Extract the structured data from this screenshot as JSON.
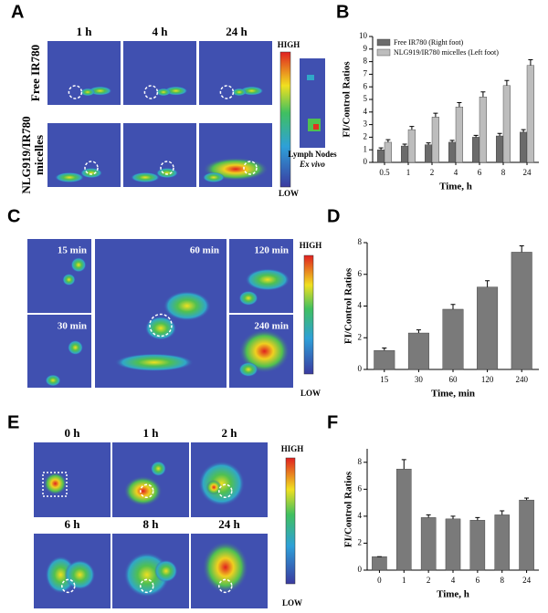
{
  "figure": {
    "panel_labels": [
      "A",
      "B",
      "C",
      "D",
      "E",
      "F"
    ],
    "panel_a": {
      "columns": [
        "1 h",
        "4 h",
        "24 h"
      ],
      "row_labels": [
        "Free IR780",
        "NLG919/IR780",
        "micelles"
      ],
      "scale_high": "HIGH",
      "scale_low": "LOW",
      "inset_label": "Lymph Nodes",
      "inset_sublabel": "Ex vivo"
    },
    "panel_c": {
      "times": [
        "15 min",
        "30 min",
        "60 min",
        "120 min",
        "240 min"
      ],
      "scale_high": "HIGH",
      "scale_low": "LOW"
    },
    "panel_e": {
      "times": [
        "0 h",
        "1 h",
        "2 h",
        "6 h",
        "8 h",
        "24 h"
      ],
      "scale_high": "HIGH",
      "scale_low": "LOW"
    }
  },
  "chart_data": [
    {
      "type": "bar",
      "categories": [
        "0.5",
        "1",
        "2",
        "4",
        "6",
        "8",
        "24"
      ],
      "series": [
        {
          "name": "Free IR780 (Right foot)",
          "color": "#6b6b6b",
          "values": [
            1.0,
            1.3,
            1.4,
            1.6,
            2.0,
            2.1,
            2.4
          ],
          "errors": [
            0.15,
            0.15,
            0.15,
            0.15,
            0.15,
            0.2,
            0.2
          ]
        },
        {
          "name": "NLG919/IR780 micelles (Left foot)",
          "color": "#bdbdbd",
          "values": [
            1.6,
            2.6,
            3.6,
            4.4,
            5.2,
            6.1,
            7.7
          ],
          "errors": [
            0.2,
            0.25,
            0.3,
            0.35,
            0.4,
            0.4,
            0.45
          ]
        }
      ],
      "ylim": [
        0,
        10
      ],
      "yticks": [
        0,
        1,
        2,
        3,
        4,
        5,
        6,
        7,
        8,
        9,
        10
      ],
      "y_label": "FI/Control Ratios",
      "x_label": "Time, h",
      "legend": "upper left"
    },
    {
      "type": "bar",
      "categories": [
        "15",
        "30",
        "60",
        "120",
        "240"
      ],
      "color": "#7a7a7a",
      "values": [
        1.2,
        2.3,
        3.8,
        5.2,
        7.4
      ],
      "errors": [
        0.15,
        0.2,
        0.3,
        0.4,
        0.4
      ],
      "ylim": [
        0,
        8
      ],
      "yticks": [
        0,
        2,
        4,
        6,
        8
      ],
      "y_label": "FI/Control Ratios",
      "x_label": "Time, min"
    },
    {
      "type": "bar",
      "categories": [
        "0",
        "1",
        "2",
        "4",
        "6",
        "8",
        "24"
      ],
      "color": "#7a7a7a",
      "values": [
        1.0,
        7.5,
        3.9,
        3.8,
        3.7,
        4.1,
        5.2
      ],
      "errors": [
        0,
        0.7,
        0.2,
        0.2,
        0.2,
        0.3,
        0.15
      ],
      "ylim": [
        0,
        9
      ],
      "yticks": [
        0,
        2,
        4,
        6,
        8
      ],
      "y_label": "FI/Control Ratios",
      "x_label": "Time, h"
    }
  ]
}
